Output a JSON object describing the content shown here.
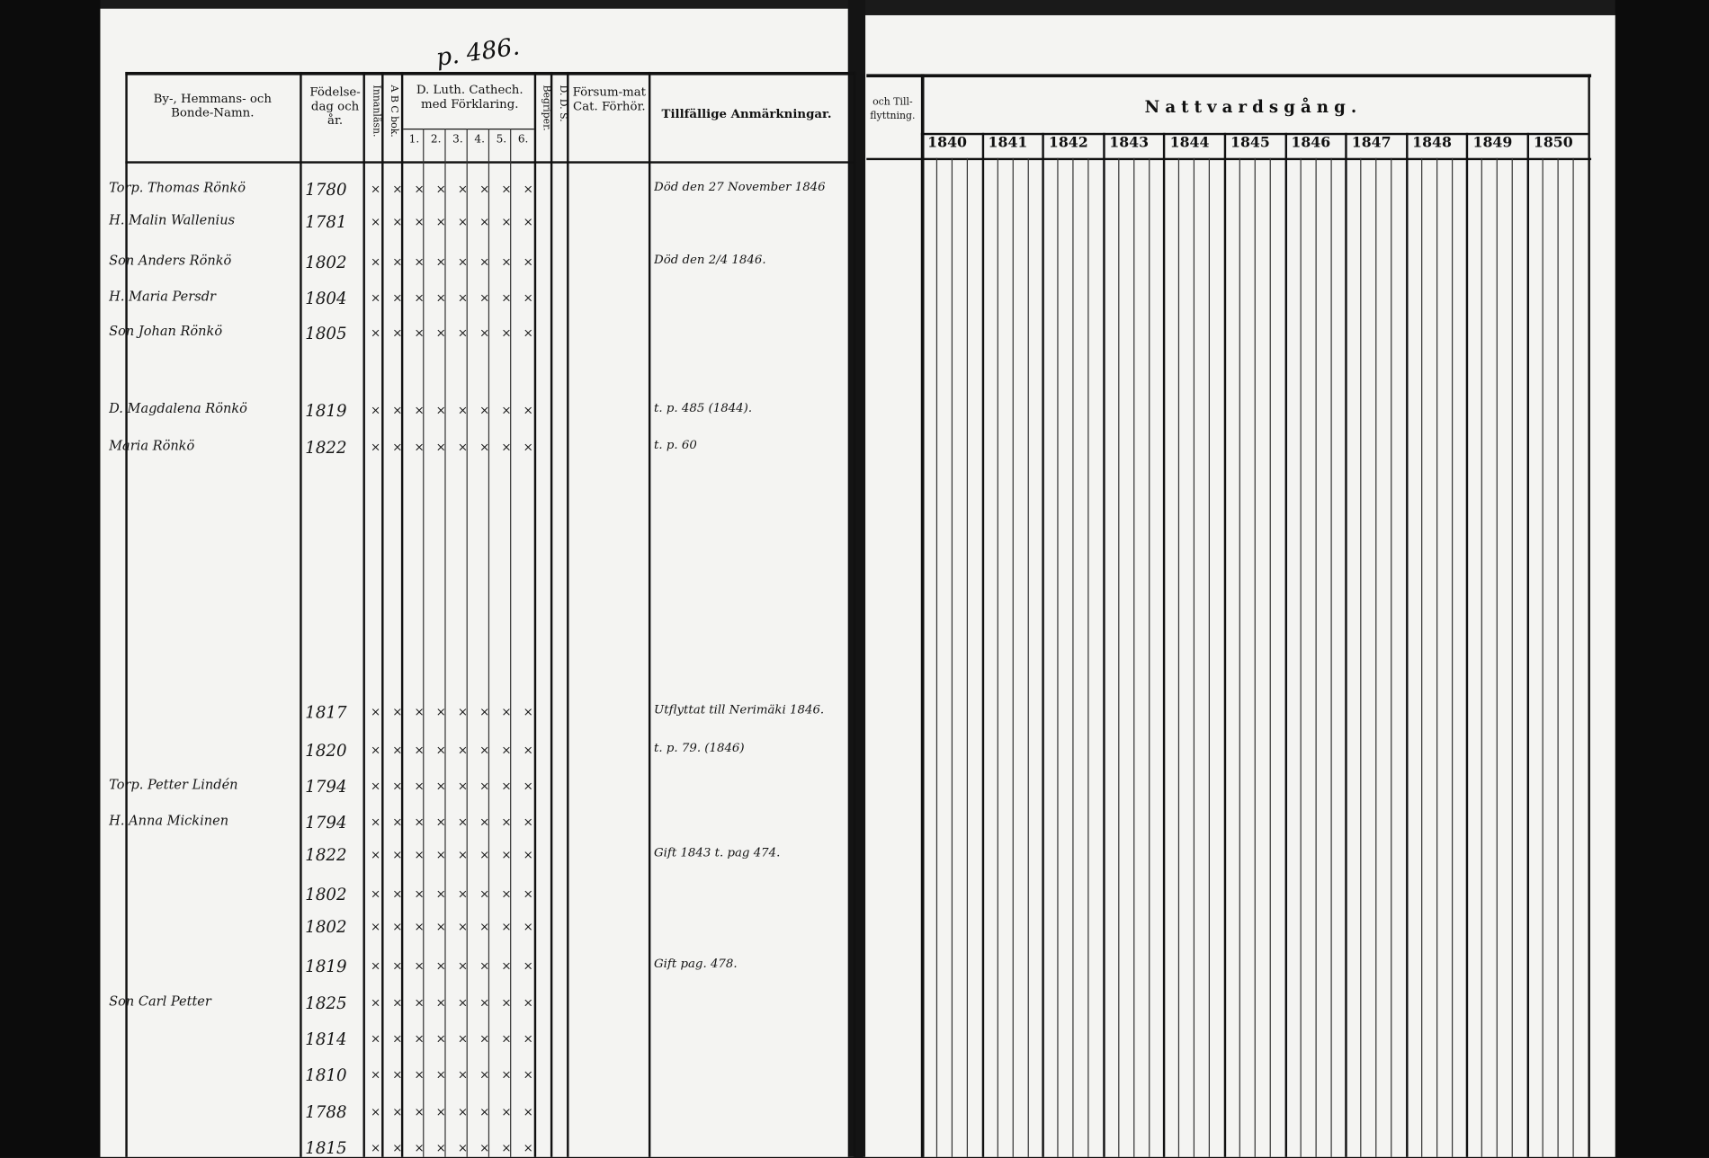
{
  "page_number": "p. 486.",
  "headers": {
    "name": "By-, Hemmans- och Bonde-Namn.",
    "birth": "Födelse-dag och år.",
    "reading": "Innanläsn.",
    "abc": "A B C bok.",
    "catechism": "D. Luth. Cathech. med Förklaring.",
    "catechism_cols": [
      "1.",
      "2.",
      "3.",
      "4.",
      "5.",
      "6."
    ],
    "understands": "Begriper.",
    "dds": "D. D. S.",
    "missed": "Försum-mat Cat. Förhör.",
    "remarks": "Tillfällige Anmärkningar.",
    "moving": "och Till-flyttning.",
    "communion": "Nattvardsgång."
  },
  "years": [
    "1840",
    "1841",
    "1842",
    "1843",
    "1844",
    "1845",
    "1846",
    "1847",
    "1848",
    "1849",
    "1850"
  ],
  "rows": [
    {
      "name": "Torp. Thomas Rönkö",
      "birth": "1780",
      "remark": "Död den 27 November 1846"
    },
    {
      "name": "H. Malin Wallenius",
      "birth": "1781",
      "remark": ""
    },
    {
      "name": "Son Anders Rönkö",
      "birth": "1802",
      "remark": "Död den 2/4 1846."
    },
    {
      "name": "H. Maria Persdr",
      "birth": "1804",
      "remark": ""
    },
    {
      "name": "Son Johan Rönkö",
      "birth": "1805",
      "remark": ""
    },
    {
      "name": "D. Magdalena Rönkö",
      "birth": "1819",
      "remark": "t. p. 485 (1844)."
    },
    {
      "name": "Maria Rönkö",
      "birth": "1822",
      "remark": "t. p. 60"
    },
    {
      "name": "",
      "birth": "1817",
      "remark": "Utflyttat till Nerimäki 1846."
    },
    {
      "name": "",
      "birth": "1820",
      "remark": "t. p. 79. (1846)"
    },
    {
      "name": "Torp. Petter Lindén",
      "birth": "1794",
      "remark": ""
    },
    {
      "name": "H. Anna Mickinen",
      "birth": "1794",
      "remark": ""
    },
    {
      "name": "",
      "birth": "1822",
      "remark": "Gift 1843 t. pag 474."
    },
    {
      "name": "",
      "birth": "1802",
      "remark": ""
    },
    {
      "name": "",
      "birth": "1802",
      "remark": ""
    },
    {
      "name": "",
      "birth": "1819",
      "remark": "Gift pag. 478."
    },
    {
      "name": "Son Carl Petter",
      "birth": "1825",
      "remark": ""
    },
    {
      "name": "",
      "birth": "1814",
      "remark": ""
    },
    {
      "name": "",
      "birth": "1810",
      "remark": ""
    },
    {
      "name": "",
      "birth": "1788",
      "remark": ""
    },
    {
      "name": "",
      "birth": "1815",
      "remark": ""
    }
  ]
}
